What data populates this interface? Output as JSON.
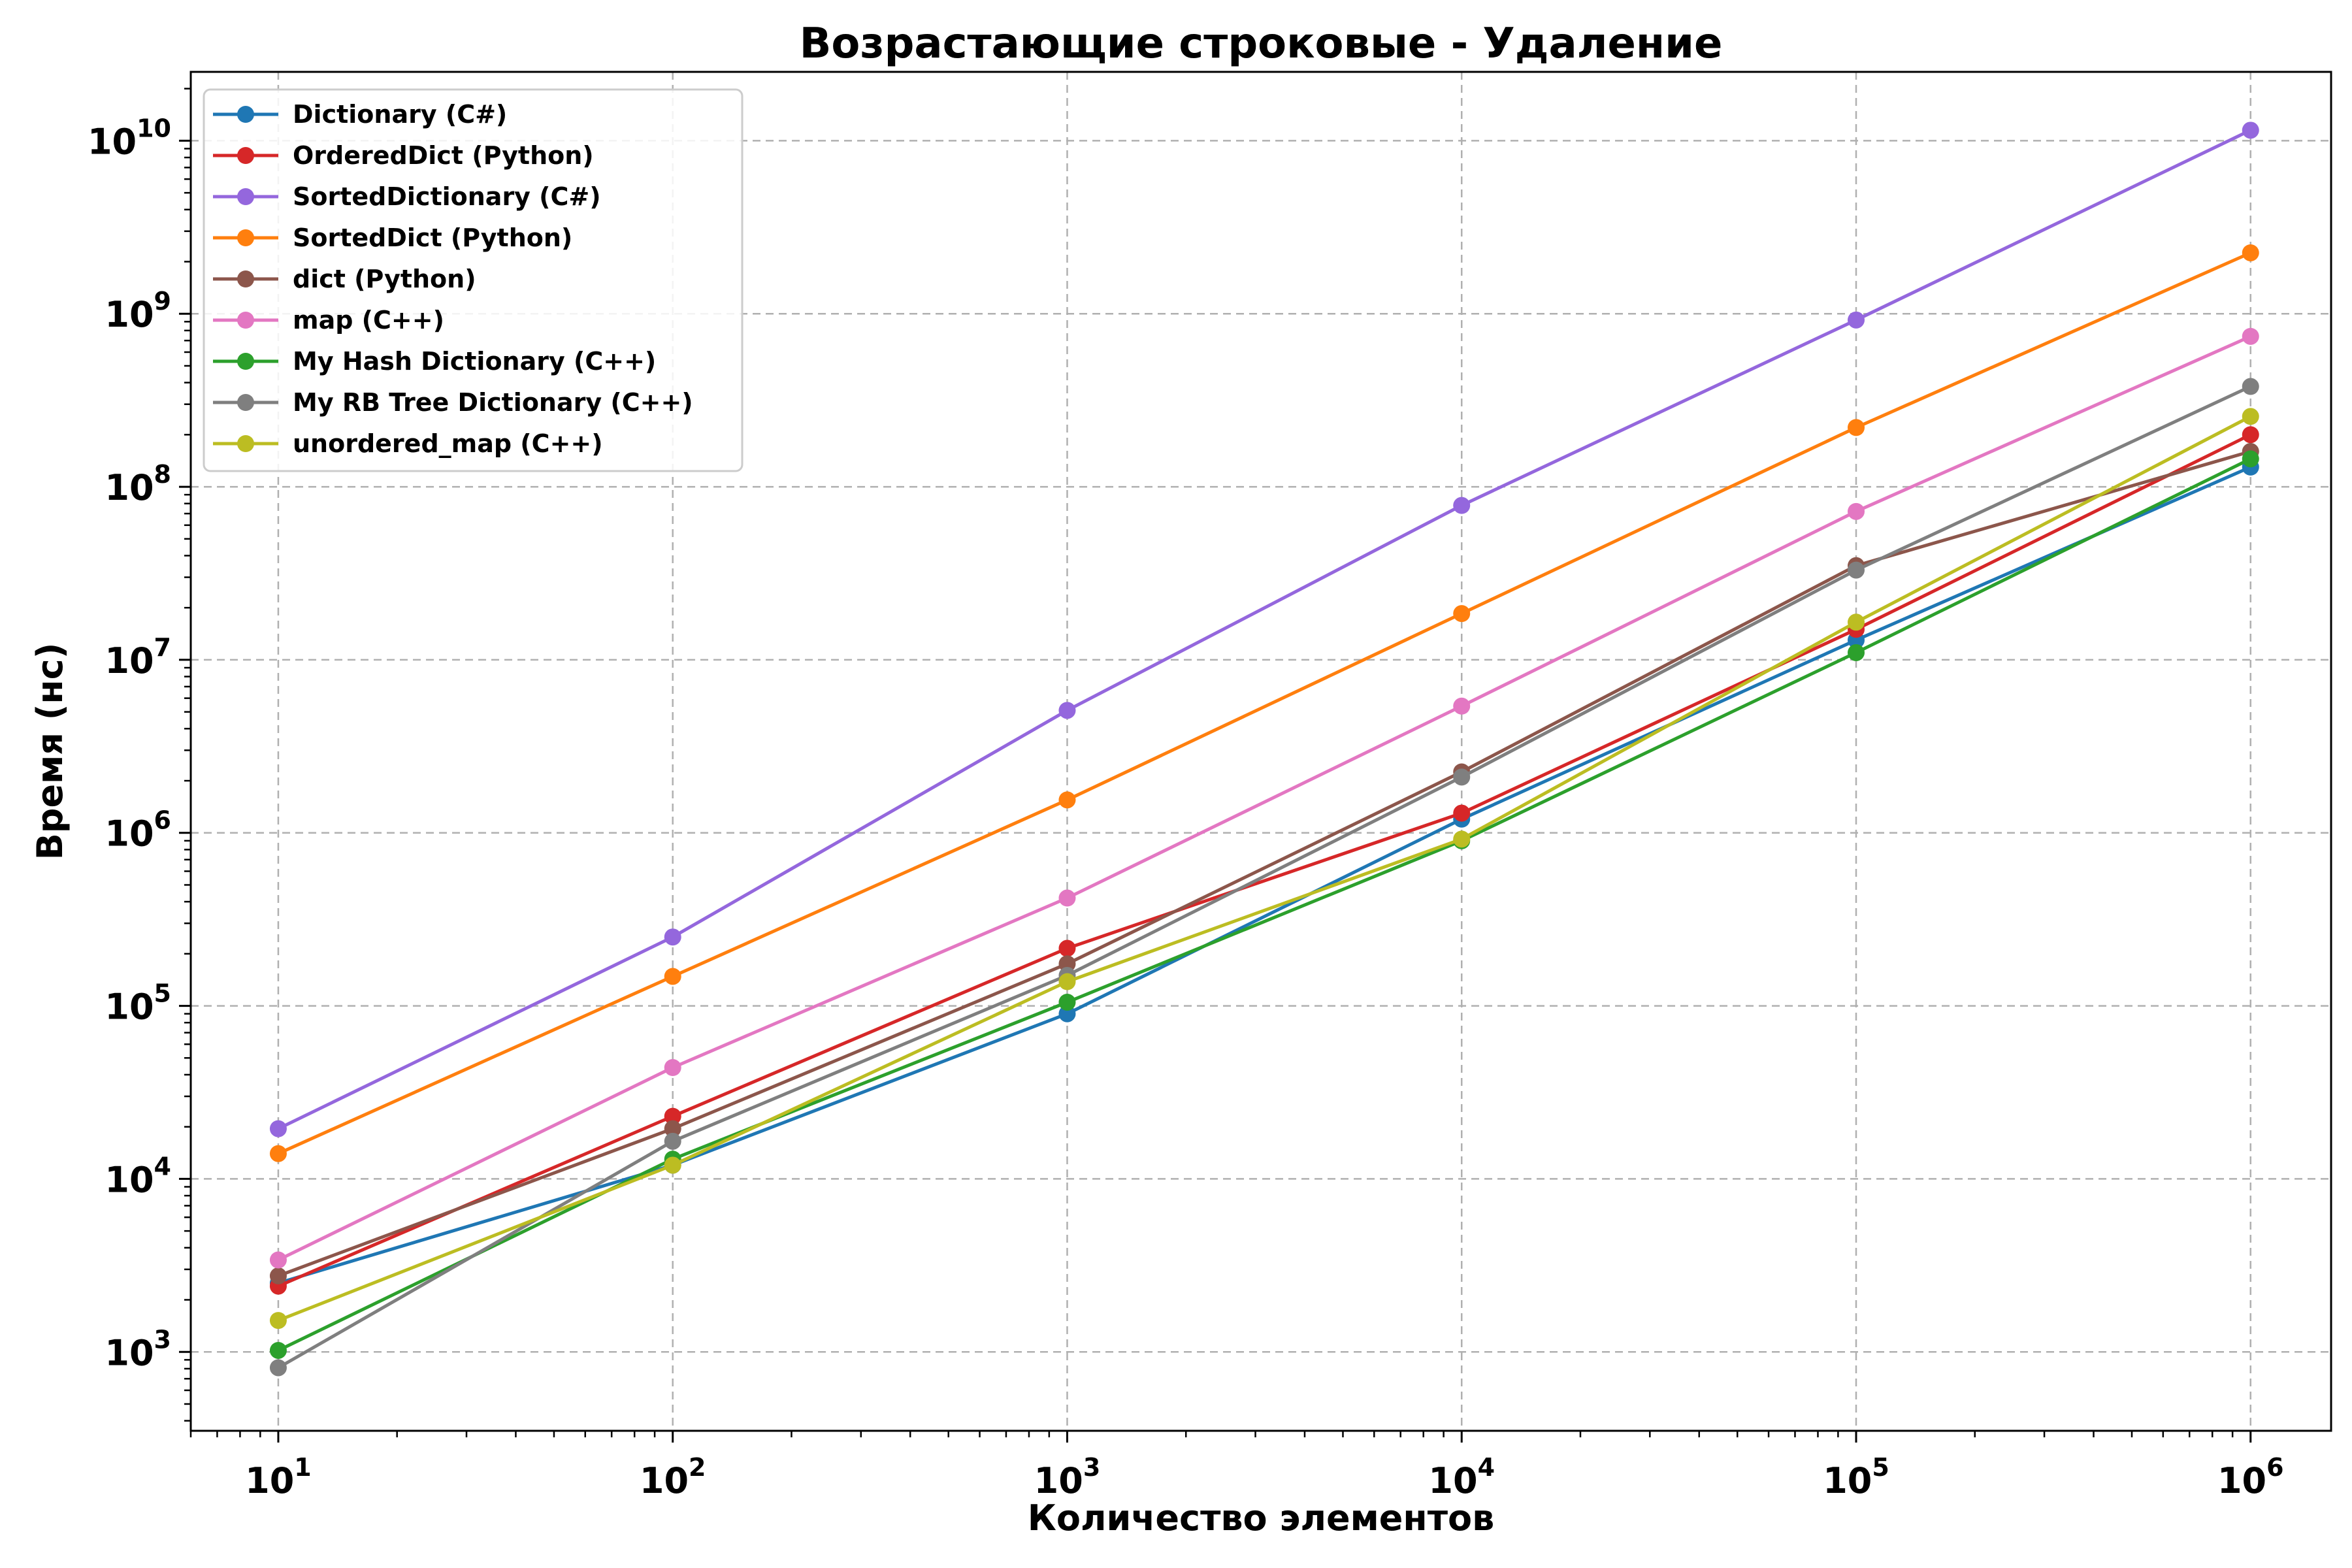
{
  "chart_data": {
    "type": "line",
    "title": "Возрастающие строковые - Удаление",
    "xlabel": "Количество элементов",
    "ylabel": "Время (нс)",
    "x_scale": "log",
    "y_scale": "log",
    "x": [
      10,
      100,
      1000,
      10000,
      100000,
      1000000
    ],
    "x_ticks": [
      {
        "base": "10",
        "exp": "1"
      },
      {
        "base": "10",
        "exp": "2"
      },
      {
        "base": "10",
        "exp": "3"
      },
      {
        "base": "10",
        "exp": "4"
      },
      {
        "base": "10",
        "exp": "5"
      },
      {
        "base": "10",
        "exp": "6"
      }
    ],
    "y_ticks": [
      {
        "base": "10",
        "exp": "3"
      },
      {
        "base": "10",
        "exp": "4"
      },
      {
        "base": "10",
        "exp": "5"
      },
      {
        "base": "10",
        "exp": "6"
      },
      {
        "base": "10",
        "exp": "7"
      },
      {
        "base": "10",
        "exp": "8"
      },
      {
        "base": "10",
        "exp": "9"
      },
      {
        "base": "10",
        "exp": "10"
      }
    ],
    "xlim": [
      6,
      1600000
    ],
    "ylim": [
      350,
      25000000000
    ],
    "grid": true,
    "legend_position": "top-left",
    "series": [
      {
        "name": "Dictionary (C#)",
        "color": "#1f77b4",
        "values": [
          2500,
          12000,
          90000,
          1200000,
          13000000,
          130000000
        ]
      },
      {
        "name": "OrderedDict (Python)",
        "color": "#d62728",
        "values": [
          2400,
          23000,
          215000,
          1300000,
          15000000,
          200000000
        ]
      },
      {
        "name": "SortedDictionary (C#)",
        "color": "#9467dd",
        "values": [
          19500,
          250000,
          5100000,
          78000000,
          920000000,
          11500000000
        ]
      },
      {
        "name": "SortedDict (Python)",
        "color": "#ff7f0e",
        "values": [
          14000,
          148000,
          1550000,
          18500000,
          220000000,
          2250000000
        ]
      },
      {
        "name": "dict (Python)",
        "color": "#8c564b",
        "values": [
          2750,
          19500,
          175000,
          2250000,
          35000000,
          160000000
        ]
      },
      {
        "name": "map (C++)",
        "color": "#e377c2",
        "values": [
          3400,
          44000,
          420000,
          5400000,
          72000000,
          740000000
        ]
      },
      {
        "name": "My Hash Dictionary (C++)",
        "color": "#2ca02c",
        "values": [
          1020,
          13000,
          105000,
          900000,
          11000000,
          145000000
        ]
      },
      {
        "name": "My RB Tree Dictionary (C++)",
        "color": "#7f7f7f",
        "values": [
          810,
          16500,
          150000,
          2100000,
          33000000,
          380000000
        ]
      },
      {
        "name": "unordered_map (C++)",
        "color": "#bcbd22",
        "values": [
          1520,
          12000,
          138000,
          920000,
          16500000,
          255000000
        ]
      }
    ]
  }
}
